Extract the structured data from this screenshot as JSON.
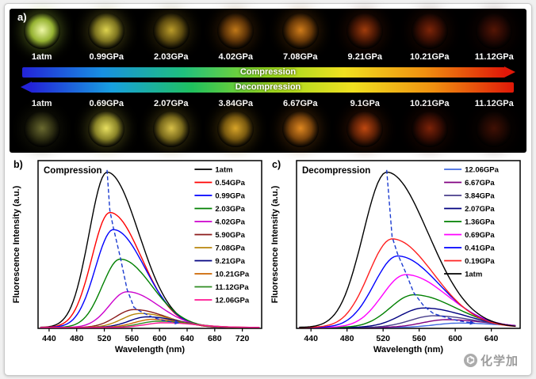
{
  "panel_a": {
    "label": "a)",
    "top_row": {
      "labels": [
        "1atm",
        "0.99GPa",
        "2.03GPa",
        "4.02GPa",
        "7.08GPa",
        "9.21GPa",
        "10.21GPa",
        "11.12GPa"
      ],
      "sample_colors": [
        [
          "#eef7a6",
          "#96b332"
        ],
        [
          "#ddd24e",
          "#7d7420"
        ],
        [
          "#bb9c2a",
          "#5e4c10"
        ],
        [
          "#c07818",
          "#5e3408"
        ],
        [
          "#d07c1a",
          "#6a3a08"
        ],
        [
          "#a03c0c",
          "#461604"
        ],
        [
          "#7c2408",
          "#380e03"
        ],
        [
          "#541505",
          "#250803"
        ]
      ]
    },
    "bottom_row": {
      "labels": [
        "1atm",
        "0.69GPa",
        "2.07GPa",
        "3.84GPa",
        "6.67GPa",
        "9.1GPa",
        "10.21GPa",
        "11.12GPa"
      ],
      "sample_colors": [
        [
          "#6a6a30",
          "#2e2e12"
        ],
        [
          "#e8e060",
          "#8a8428"
        ],
        [
          "#d8c048",
          "#7a6a1c"
        ],
        [
          "#d8a428",
          "#7a5a10"
        ],
        [
          "#e08820",
          "#7a440c"
        ],
        [
          "#c04810",
          "#5c2006"
        ],
        [
          "#7c2208",
          "#380d03"
        ],
        [
          "#401004",
          "#1c0702"
        ]
      ]
    },
    "arrows": [
      {
        "label": "Compression",
        "direction": "right",
        "gradient": [
          "#2323d8",
          "#1890e0",
          "#1fc07e",
          "#8fd81f",
          "#f0e020",
          "#f09010",
          "#e01808"
        ]
      },
      {
        "label": "Decompression",
        "direction": "left",
        "gradient": [
          "#2323d8",
          "#18a0e0",
          "#1fc05e",
          "#a0d81f",
          "#f0e020",
          "#f09010",
          "#e01808"
        ]
      }
    ]
  },
  "chart_data": [
    {
      "type": "line",
      "panel_label": "b)",
      "title": "Compression",
      "xlabel": "Wavelength (nm)",
      "ylabel": "Fluorescence Intensity (a.u.)",
      "xlim": [
        424,
        748
      ],
      "xticks": [
        440,
        480,
        520,
        560,
        600,
        640,
        680,
        720
      ],
      "ylim": [
        0,
        1.08
      ],
      "legend_position": "top-right-inside",
      "legend_x": 0.7,
      "grid": false,
      "arrow_color": "#1b3bd0",
      "series": [
        {
          "name": "1atm",
          "color": "#000000",
          "peak_nm": 524,
          "intensity": 1.0
        },
        {
          "name": "0.54GPa",
          "color": "#ff0000",
          "peak_nm": 528,
          "intensity": 0.74
        },
        {
          "name": "0.99GPa",
          "color": "#0000ff",
          "peak_nm": 533,
          "intensity": 0.63
        },
        {
          "name": "2.03GPa",
          "color": "#008000",
          "peak_nm": 543,
          "intensity": 0.44
        },
        {
          "name": "4.02GPa",
          "color": "#cc00cc",
          "peak_nm": 553,
          "intensity": 0.23
        },
        {
          "name": "5.90GPa",
          "color": "#8b1a1a",
          "peak_nm": 563,
          "intensity": 0.115
        },
        {
          "name": "7.08GPa",
          "color": "#b8860b",
          "peak_nm": 572,
          "intensity": 0.09
        },
        {
          "name": "9.21GPa",
          "color": "#000080",
          "peak_nm": 582,
          "intensity": 0.068
        },
        {
          "name": "10.21GPa",
          "color": "#cd6600",
          "peak_nm": 590,
          "intensity": 0.052
        },
        {
          "name": "11.12GPa",
          "color": "#2e8b22",
          "peak_nm": 598,
          "intensity": 0.04
        },
        {
          "name": "12.06GPa",
          "color": "#ff1493",
          "peak_nm": 606,
          "intensity": 0.03
        }
      ]
    },
    {
      "type": "line",
      "panel_label": "c)",
      "title": "Decompression",
      "xlabel": "Wavelength (nm)",
      "ylabel": "Fluorescence Intensity (a.u.)",
      "xlim": [
        424,
        672
      ],
      "xticks": [
        440,
        480,
        520,
        560,
        600,
        640
      ],
      "ylim": [
        0,
        1.08
      ],
      "legend_position": "top-right-inside",
      "legend_x": 0.66,
      "grid": false,
      "arrow_color": "#1b3bd0",
      "series": [
        {
          "name": "12.06GPa",
          "color": "#4169e1",
          "peak_nm": 604,
          "intensity": 0.028
        },
        {
          "name": "6.67GPa",
          "color": "#800080",
          "peak_nm": 590,
          "intensity": 0.05
        },
        {
          "name": "3.84GPa",
          "color": "#483d8b",
          "peak_nm": 576,
          "intensity": 0.075
        },
        {
          "name": "2.07GPa",
          "color": "#000080",
          "peak_nm": 565,
          "intensity": 0.125
        },
        {
          "name": "1.36GPa",
          "color": "#008000",
          "peak_nm": 554,
          "intensity": 0.21
        },
        {
          "name": "0.69GPa",
          "color": "#ff00ff",
          "peak_nm": 545,
          "intensity": 0.34
        },
        {
          "name": "0.41GPa",
          "color": "#0000ff",
          "peak_nm": 536,
          "intensity": 0.46
        },
        {
          "name": "0.19GPa",
          "color": "#ff2020",
          "peak_nm": 530,
          "intensity": 0.57
        },
        {
          "name": "1atm",
          "color": "#000000",
          "peak_nm": 524,
          "intensity": 1.0
        }
      ]
    }
  ],
  "watermark": {
    "icon": "⌬",
    "text": "化学加"
  }
}
